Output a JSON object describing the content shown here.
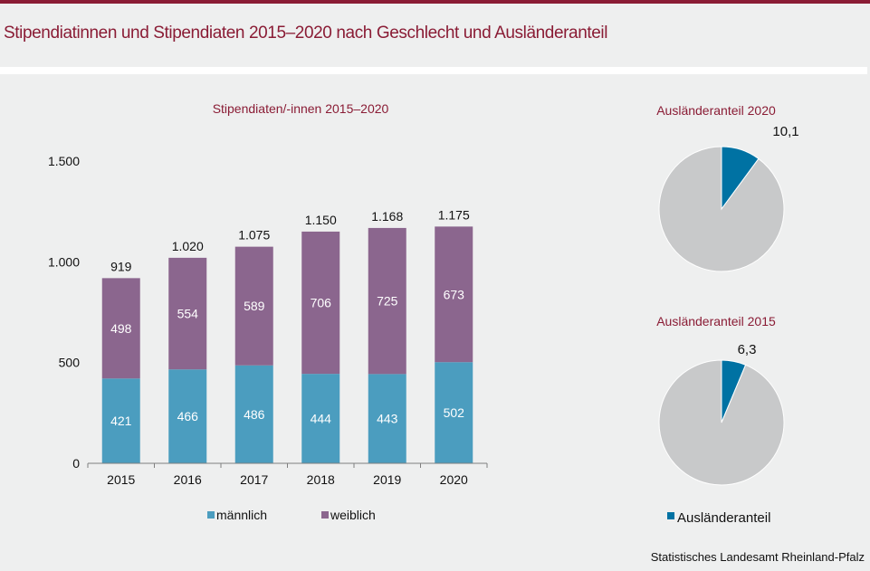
{
  "page": {
    "title": "Stipendiatinnen und Stipendiaten 2015–2020 nach Geschlecht und Ausländeranteil",
    "source": "Statistisches Landesamt  Rheinland-Pfalz",
    "accent_color": "#8a1c35"
  },
  "chart_data": [
    {
      "type": "bar",
      "stacked": true,
      "title": "Stipendiaten/-innen  2015–2020",
      "xlabel": "",
      "ylabel": "",
      "categories": [
        "2015",
        "2016",
        "2017",
        "2018",
        "2019",
        "2020"
      ],
      "series": [
        {
          "name": "männlich",
          "color": "#4b9dbf",
          "values": [
            421,
            466,
            486,
            444,
            443,
            502
          ]
        },
        {
          "name": "weiblich",
          "color": "#8b668e",
          "values": [
            498,
            554,
            589,
            706,
            725,
            673
          ]
        }
      ],
      "totals": [
        919,
        1020,
        1075,
        1150,
        1168,
        1175
      ],
      "total_labels": [
        "919",
        "1.020",
        "1.075",
        "1.150",
        "1.168",
        "1.175"
      ],
      "ylim": [
        0,
        1500
      ],
      "yticks": [
        0,
        500,
        1000,
        1500
      ],
      "ytick_labels": [
        "0",
        "500",
        "1.000",
        "1.500"
      ],
      "grid": false,
      "legend": "bottom"
    },
    {
      "type": "pie",
      "title": "Ausländeranteil  2020",
      "slices": [
        {
          "name": "Ausländeranteil",
          "value": 10.1,
          "label": "10,1",
          "color": "#0072a3"
        },
        {
          "name": "Rest",
          "value": 89.9,
          "label": "",
          "color": "#c8c9ca"
        }
      ]
    },
    {
      "type": "pie",
      "title": "Ausländeranteil  2015",
      "slices": [
        {
          "name": "Ausländeranteil",
          "value": 6.3,
          "label": "6,3",
          "color": "#0072a3"
        },
        {
          "name": "Rest",
          "value": 93.7,
          "label": "",
          "color": "#c8c9ca"
        }
      ],
      "legend": "bottom",
      "legend_entries": [
        "Ausländeranteil"
      ]
    }
  ]
}
